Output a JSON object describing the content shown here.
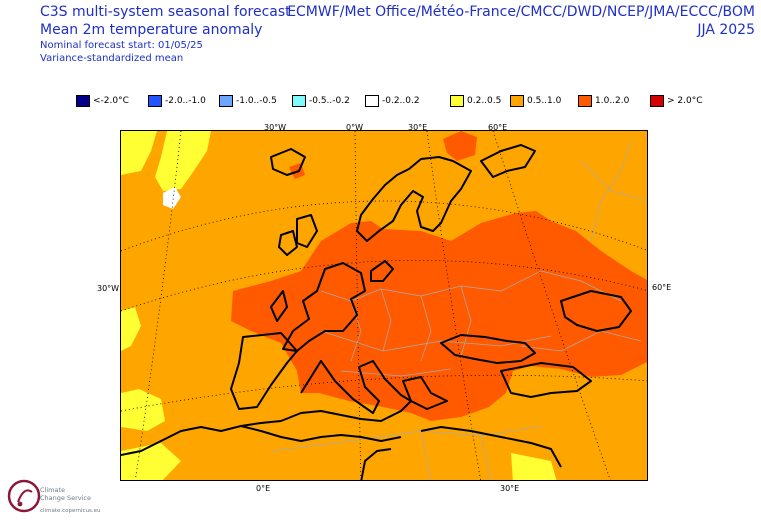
{
  "header": {
    "title": "C3S multi-system seasonal forecast",
    "subtitle": "Mean 2m temperature anomaly",
    "start": "Nominal forecast start: 01/05/25",
    "method": "Variance-standardized mean",
    "centres": "ECMWF/Met Office/Météo-France/CMCC/DWD/NCEP/JMA/ECCC/BOM",
    "season": "JJA 2025"
  },
  "legend": {
    "items": [
      {
        "label": "<-2.0°C",
        "color": "#00008b"
      },
      {
        "label": "-2.0..-1.0",
        "color": "#2255ff"
      },
      {
        "label": "-1.0..-0.5",
        "color": "#6ea6ff"
      },
      {
        "label": "-0.5..-0.2",
        "color": "#7ffaff"
      },
      {
        "label": "-0.2..0.2",
        "color": "#ffffff"
      },
      {
        "label": "0.2..0.5",
        "color": "#ffff33"
      },
      {
        "label": "0.5..1.0",
        "color": "#ffa500"
      },
      {
        "label": "1.0..2.0",
        "color": "#ff5a00"
      },
      {
        "label": "> 2.0°C",
        "color": "#d40000"
      }
    ]
  },
  "map": {
    "region": "Europe",
    "coords": {
      "lon_30w_top": "30°W",
      "lon_0w_top": "0°W",
      "lon_30e_top": "30°E",
      "lon_60e_top": "60°E",
      "lat_30w_left": "30°W",
      "lat_60e_right": "60°E",
      "lon_0e_bottom": "0°E",
      "lon_30e_bottom": "30°E"
    },
    "colors": {
      "background": "#ffa500",
      "light": "#ffff33",
      "warm": "#ff5a00",
      "neutral": "#ffffff",
      "coast": "#000000",
      "border": "#aaaaaa"
    }
  },
  "branding": {
    "name_line1": "Climate",
    "name_line2": "Change Service",
    "url": "climate.copernicus.eu"
  }
}
